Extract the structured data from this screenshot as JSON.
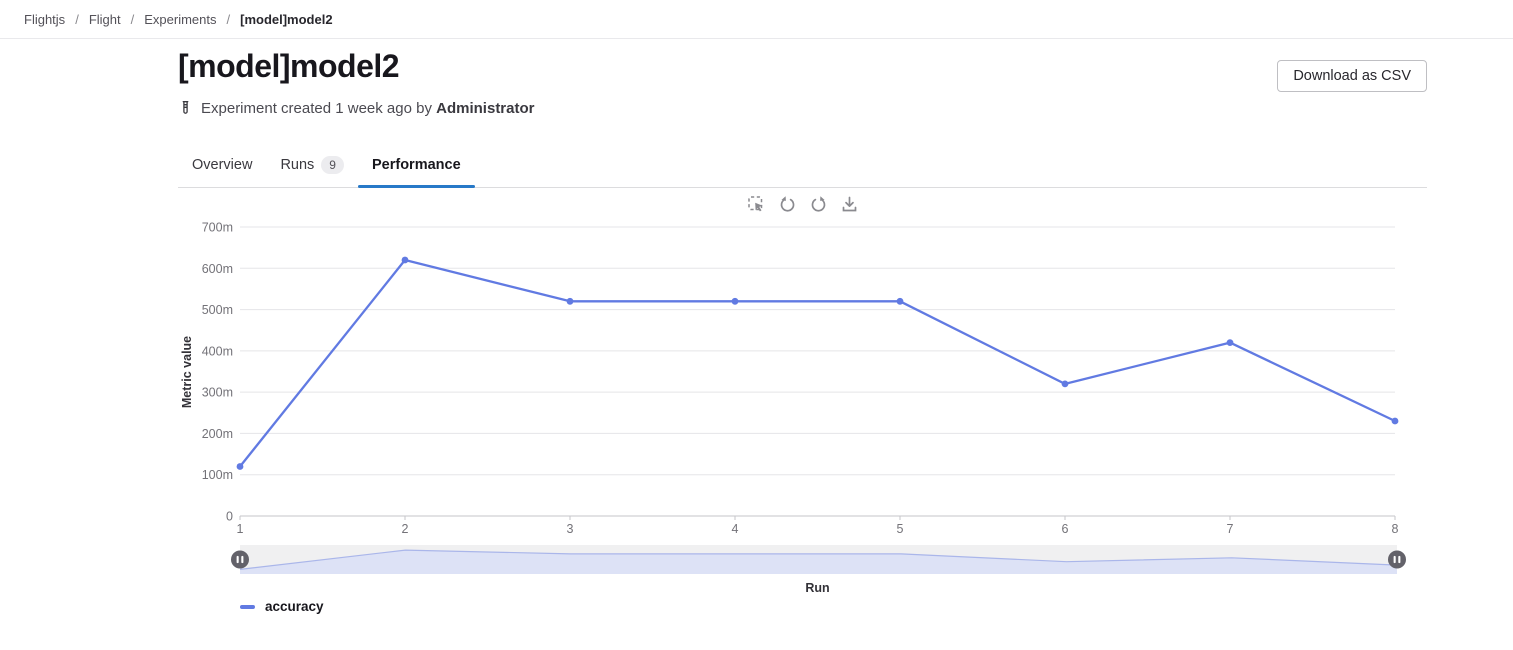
{
  "breadcrumb": {
    "separator": "/",
    "items": [
      "Flightjs",
      "Flight",
      "Experiments",
      "[model]model2"
    ]
  },
  "header": {
    "title": "[model]model2",
    "download_button": "Download as CSV",
    "created_prefix": "Experiment created 1 week ago by",
    "created_by": "Administrator"
  },
  "tabs": [
    {
      "label": "Overview"
    },
    {
      "label": "Runs",
      "badge": "9"
    },
    {
      "label": "Performance"
    }
  ],
  "toolbar": {
    "icons": [
      "marquee-zoom",
      "undo",
      "redo",
      "download"
    ]
  },
  "chart_data": {
    "type": "line",
    "xlabel": "Run",
    "ylabel": "Metric value",
    "x": [
      1,
      2,
      3,
      4,
      5,
      6,
      7,
      8
    ],
    "x_tick_labels": [
      "1",
      "2",
      "3",
      "4",
      "5",
      "6",
      "7",
      "8"
    ],
    "series": [
      {
        "name": "accuracy",
        "values": [
          0.12,
          0.62,
          0.52,
          0.52,
          0.52,
          0.32,
          0.42,
          0.23
        ],
        "values_m": [
          120,
          620,
          520,
          520,
          520,
          320,
          420,
          230
        ],
        "color": "#617ae2"
      }
    ],
    "ylim_m": [
      0,
      700
    ],
    "y_ticks": [
      "700m",
      "600m",
      "500m",
      "400m",
      "300m",
      "200m",
      "100m"
    ],
    "y_tick_values_m": [
      700,
      600,
      500,
      400,
      300,
      200,
      100
    ],
    "y_zero_label": "0",
    "grid": true,
    "legend_position": "bottom-left",
    "has_brush": true
  },
  "colors": {
    "accent_blue": "#2779c8",
    "line": "#617ae2",
    "grid": "#e5e5e8",
    "axis": "#c6c6ca",
    "tick_text": "#737278",
    "axis_title_text": "#333238",
    "brush_bg": "#f0f0f1",
    "brush_fill": "#dde2f6",
    "brush_stroke": "#aab6ea",
    "handle": "#63626a",
    "icon_gray": "#8a8a8f"
  }
}
